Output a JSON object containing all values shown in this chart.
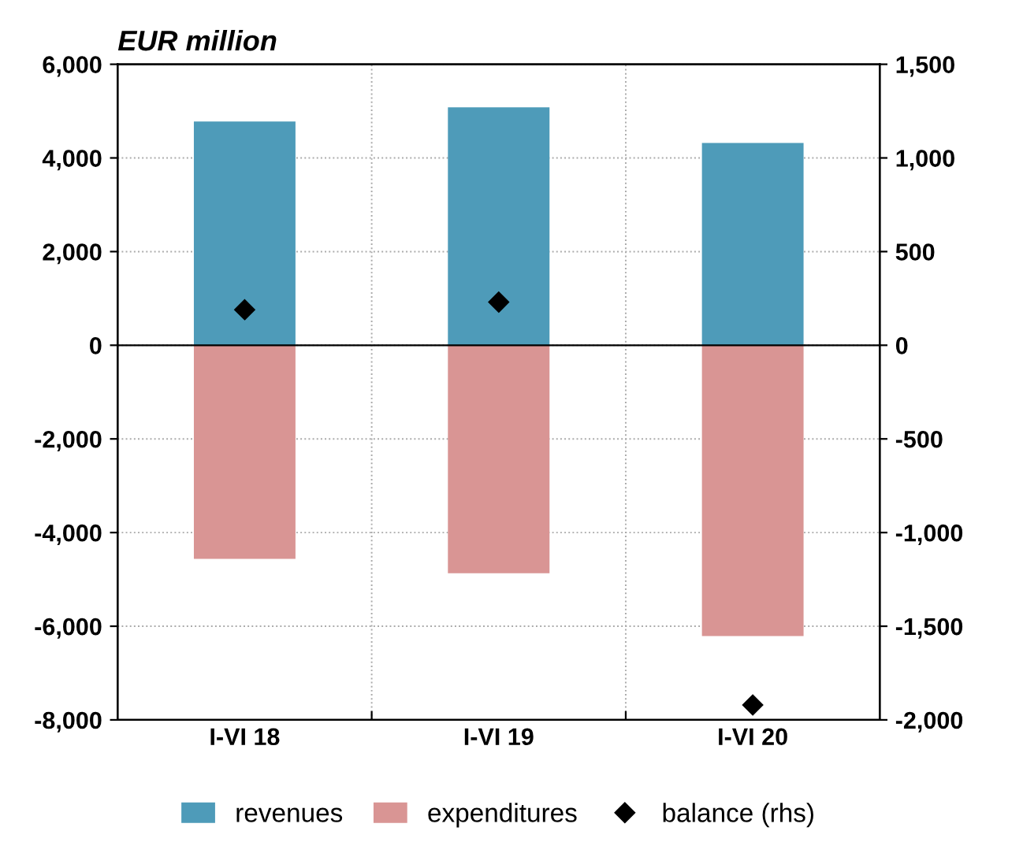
{
  "chart_data": {
    "type": "bar",
    "stacked": true,
    "ylabel": "EUR million",
    "categories": [
      "I-VI 18",
      "I-VI 19",
      "I-VI 20"
    ],
    "series": [
      {
        "name": "revenues",
        "color": "#4e9bb9",
        "values": [
          4780,
          5080,
          4320
        ]
      },
      {
        "name": "expenditures",
        "color": "#d99594",
        "values": [
          -4560,
          -4870,
          -6210
        ]
      },
      {
        "name": "balance (rhs)",
        "type": "scatter",
        "axis": "y2",
        "color": "#000000",
        "marker": "diamond",
        "values": [
          190,
          230,
          -1920
        ]
      }
    ],
    "ylim": [
      -8000,
      6000
    ],
    "yticks": [
      {
        "value": -8000,
        "label": "-8,000"
      },
      {
        "value": -6000,
        "label": "-6,000"
      },
      {
        "value": -4000,
        "label": "-4,000"
      },
      {
        "value": -2000,
        "label": "-2,000"
      },
      0,
      {
        "value": 2000,
        "label": "2,000"
      },
      {
        "value": 4000,
        "label": "4,000"
      },
      {
        "value": 6000,
        "label": "6,000"
      }
    ],
    "y2lim": [
      -2000,
      1500
    ],
    "y2ticks": [
      {
        "value": -2000,
        "label": "-2,000"
      },
      {
        "value": -1500,
        "label": "-1,500"
      },
      {
        "value": -1000,
        "label": "-1,000"
      },
      -500,
      0,
      500,
      {
        "value": 1000,
        "label": "1,000"
      },
      {
        "value": 1500,
        "label": "1,500"
      }
    ],
    "grid": true,
    "legend": "bottom"
  }
}
